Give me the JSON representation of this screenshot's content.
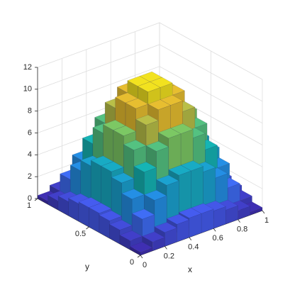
{
  "chart_data": {
    "type": "surface",
    "x": [
      0.05,
      0.15,
      0.25,
      0.35,
      0.45,
      0.55,
      0.65,
      0.75,
      0.85,
      0.95
    ],
    "y": [
      0.05,
      0.15,
      0.25,
      0.35,
      0.45,
      0.55,
      0.65,
      0.75,
      0.85,
      0.95
    ],
    "z": [
      [
        0.28,
        0.81,
        1.27,
        1.6,
        1.77,
        1.77,
        1.6,
        1.27,
        0.81,
        0.28
      ],
      [
        0.81,
        2.37,
        3.69,
        4.65,
        5.16,
        5.16,
        4.65,
        3.69,
        2.37,
        0.81
      ],
      [
        1.27,
        3.69,
        5.75,
        7.24,
        8.03,
        8.03,
        7.24,
        5.75,
        3.69,
        1.27
      ],
      [
        1.6,
        4.65,
        7.24,
        9.13,
        10.12,
        10.12,
        9.13,
        7.24,
        4.65,
        1.6
      ],
      [
        1.77,
        5.16,
        8.03,
        10.12,
        11.23,
        11.23,
        10.12,
        8.03,
        5.16,
        1.77
      ],
      [
        1.77,
        5.16,
        8.03,
        10.12,
        11.23,
        11.23,
        10.12,
        8.03,
        5.16,
        1.77
      ],
      [
        1.6,
        4.65,
        7.24,
        9.13,
        10.12,
        10.12,
        9.13,
        7.24,
        4.65,
        1.6
      ],
      [
        1.27,
        3.69,
        5.75,
        7.24,
        8.03,
        8.03,
        7.24,
        5.75,
        3.69,
        1.27
      ],
      [
        0.81,
        2.37,
        3.69,
        4.65,
        5.16,
        5.16,
        4.65,
        3.69,
        2.37,
        0.81
      ],
      [
        0.28,
        0.81,
        1.27,
        1.6,
        1.77,
        1.77,
        1.6,
        1.27,
        0.81,
        0.28
      ]
    ],
    "xlim": [
      0,
      1
    ],
    "ylim": [
      0,
      1
    ],
    "zlim": [
      0,
      12
    ],
    "xticks": [
      0,
      0.2,
      0.4,
      0.6,
      0.8,
      1
    ],
    "yticks": [
      0,
      0.5,
      1
    ],
    "zticks": [
      0,
      2,
      4,
      6,
      8,
      10,
      12
    ],
    "xlabel": "x",
    "ylabel": "y",
    "colormap": "parula",
    "grid": true
  }
}
